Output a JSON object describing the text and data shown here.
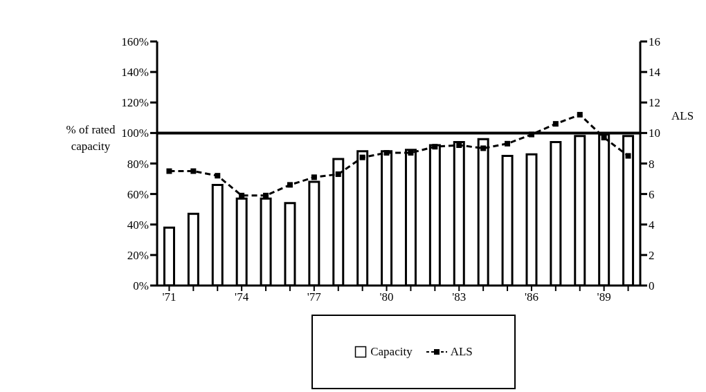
{
  "chart_data": {
    "type": "bar",
    "ylabel": "% of rated capacity",
    "y2label": "ALS",
    "categories": [
      "'71",
      null,
      null,
      "'74",
      null,
      null,
      "'77",
      null,
      null,
      "'80",
      null,
      null,
      "'83",
      null,
      null,
      "'86",
      null,
      null,
      "'89",
      null
    ],
    "series": [
      {
        "name": "Capacity",
        "color": "#ffffff",
        "values": [
          38,
          47,
          66,
          57,
          57,
          54,
          68,
          83,
          88,
          88,
          89,
          92,
          94,
          96,
          85,
          86,
          94,
          98,
          99,
          98
        ]
      },
      {
        "name": "ALS",
        "type": "line",
        "axis": "y2",
        "color": "#000000",
        "marker": "square",
        "line_style": "dashed",
        "values": [
          7.5,
          7.5,
          7.2,
          5.9,
          5.9,
          6.6,
          7.1,
          7.3,
          8.4,
          8.7,
          8.7,
          9.1,
          9.2,
          9.0,
          9.3,
          9.9,
          10.6,
          11.2,
          9.7,
          8.5
        ]
      }
    ],
    "ylim": [
      0,
      160
    ],
    "yticks": [
      {
        "value": 0,
        "label": "0%"
      },
      {
        "value": 20,
        "label": "20%"
      },
      {
        "value": 40,
        "label": "40%"
      },
      {
        "value": 60,
        "label": "60%"
      },
      {
        "value": 80,
        "label": "80%"
      },
      {
        "value": 100,
        "label": "100%"
      },
      {
        "value": 120,
        "label": "120%"
      },
      {
        "value": 140,
        "label": "140%"
      },
      {
        "value": 160,
        "label": "160%"
      }
    ],
    "y2lim": [
      0,
      16
    ],
    "y2ticks": [
      0,
      2,
      4,
      6,
      8,
      10,
      12,
      14,
      16
    ],
    "ref_lines": [
      {
        "axis": "y",
        "value": 100,
        "color": "#000000"
      }
    ],
    "grid": false,
    "legend": "bottom"
  }
}
